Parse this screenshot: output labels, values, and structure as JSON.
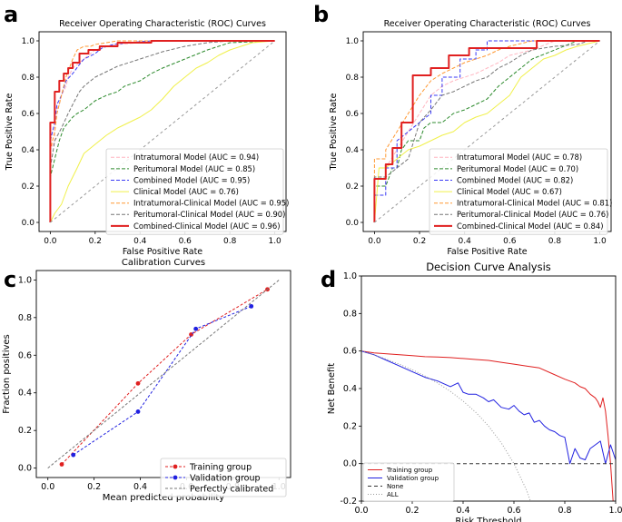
{
  "panels": {
    "a": {
      "letter": "a"
    },
    "b": {
      "letter": "b"
    },
    "c": {
      "letter": "c"
    },
    "d": {
      "letter": "d"
    }
  },
  "chart_data": [
    {
      "id": "roc-a",
      "type": "line",
      "title": "Receiver Operating Characteristic (ROC) Curves",
      "xlabel": "False Positive Rate",
      "ylabel": "True Positive Rate",
      "xlim": [
        -0.05,
        1.05
      ],
      "ylim": [
        -0.05,
        1.05
      ],
      "xticks": [
        "0.0",
        "0.2",
        "0.4",
        "0.6",
        "0.8",
        "1.0"
      ],
      "yticks": [
        "0.0",
        "0.2",
        "0.4",
        "0.6",
        "0.8",
        "1.0"
      ],
      "legend_position": "lower-right",
      "series": [
        {
          "name": "Intratumoral Model (AUC = 0.94)",
          "color": "#ffb6c1",
          "dash": "4,2",
          "width": 1,
          "x": [
            0,
            0,
            0.02,
            0.02,
            0.04,
            0.05,
            0.07,
            0.08,
            0.1,
            0.13,
            0.17,
            0.2,
            0.25,
            0.3,
            0.4,
            0.5,
            0.6,
            1
          ],
          "y": [
            0,
            0.4,
            0.45,
            0.6,
            0.65,
            0.7,
            0.75,
            0.8,
            0.85,
            0.88,
            0.92,
            0.95,
            0.97,
            0.98,
            0.99,
            1,
            1,
            1
          ]
        },
        {
          "name": "Peritumoral Model (AUC = 0.85)",
          "color": "#2e8b2e",
          "dash": "4,2",
          "width": 1,
          "x": [
            0,
            0,
            0.02,
            0.04,
            0.06,
            0.08,
            0.1,
            0.12,
            0.15,
            0.2,
            0.25,
            0.3,
            0.33,
            0.4,
            0.45,
            0.5,
            0.6,
            0.7,
            0.8,
            1
          ],
          "y": [
            0,
            0.25,
            0.35,
            0.45,
            0.52,
            0.55,
            0.58,
            0.6,
            0.62,
            0.67,
            0.7,
            0.72,
            0.75,
            0.78,
            0.82,
            0.85,
            0.9,
            0.95,
            0.99,
            1
          ]
        },
        {
          "name": "Combined Model (AUC = 0.95)",
          "color": "#3a3af5",
          "dash": "4,2",
          "width": 1,
          "x": [
            0,
            0,
            0.02,
            0.03,
            0.05,
            0.07,
            0.1,
            0.13,
            0.15,
            0.2,
            0.23,
            0.28,
            0.35,
            0.45,
            0.6,
            1
          ],
          "y": [
            0,
            0.45,
            0.55,
            0.65,
            0.7,
            0.78,
            0.82,
            0.87,
            0.9,
            0.93,
            0.96,
            0.98,
            0.99,
            1,
            1,
            1
          ]
        },
        {
          "name": "Clinical Model (AUC = 0.76)",
          "color": "#f0f04a",
          "dash": "",
          "width": 1,
          "x": [
            0,
            0.02,
            0.05,
            0.08,
            0.12,
            0.15,
            0.2,
            0.25,
            0.3,
            0.35,
            0.4,
            0.45,
            0.5,
            0.55,
            0.6,
            0.65,
            0.7,
            0.75,
            0.8,
            0.85,
            0.9,
            1
          ],
          "y": [
            0,
            0.05,
            0.1,
            0.2,
            0.3,
            0.38,
            0.43,
            0.48,
            0.52,
            0.55,
            0.58,
            0.62,
            0.68,
            0.75,
            0.8,
            0.85,
            0.88,
            0.92,
            0.95,
            0.97,
            0.99,
            1
          ]
        },
        {
          "name": "Intratumoral-Clinical Model (AUC = 0.95)",
          "color": "#ff9933",
          "dash": "4,2",
          "width": 1,
          "x": [
            0,
            0,
            0.02,
            0.03,
            0.05,
            0.07,
            0.1,
            0.12,
            0.15,
            0.18,
            0.2,
            0.25,
            0.3,
            0.4,
            0.55,
            1
          ],
          "y": [
            0,
            0.4,
            0.5,
            0.6,
            0.7,
            0.8,
            0.9,
            0.95,
            0.97,
            0.97,
            0.98,
            0.99,
            1,
            1,
            1,
            1
          ]
        },
        {
          "name": "Peritumoral-Clinical Model (AUC = 0.90)",
          "color": "#777777",
          "dash": "4,2",
          "width": 1,
          "x": [
            0,
            0,
            0.02,
            0.05,
            0.08,
            0.1,
            0.13,
            0.15,
            0.2,
            0.25,
            0.3,
            0.35,
            0.4,
            0.5,
            0.6,
            0.7,
            0.8,
            1
          ],
          "y": [
            0,
            0.3,
            0.45,
            0.52,
            0.6,
            0.65,
            0.72,
            0.75,
            0.8,
            0.83,
            0.86,
            0.88,
            0.9,
            0.94,
            0.97,
            0.99,
            1,
            1
          ]
        },
        {
          "name": "Combined-Clinical Model (AUC = 0.96)",
          "color": "#e02020",
          "dash": "",
          "width": 2,
          "x": [
            0,
            0,
            0.02,
            0.02,
            0.04,
            0.04,
            0.06,
            0.06,
            0.08,
            0.08,
            0.1,
            0.1,
            0.13,
            0.13,
            0.17,
            0.17,
            0.22,
            0.22,
            0.3,
            0.3,
            0.45,
            0.45,
            1
          ],
          "y": [
            0,
            0.55,
            0.55,
            0.72,
            0.72,
            0.78,
            0.78,
            0.82,
            0.82,
            0.85,
            0.85,
            0.88,
            0.88,
            0.93,
            0.93,
            0.95,
            0.95,
            0.97,
            0.97,
            0.99,
            0.99,
            1,
            1
          ]
        },
        {
          "name": "",
          "color": "#999999",
          "dash": "3,3",
          "width": 1,
          "x": [
            0,
            1
          ],
          "y": [
            0,
            1
          ]
        }
      ]
    },
    {
      "id": "roc-b",
      "type": "line",
      "title": "Receiver Operating Characteristic (ROC) Curves",
      "xlabel": "False Positive Rate",
      "ylabel": "True Positive Rate",
      "xlim": [
        -0.05,
        1.05
      ],
      "ylim": [
        -0.05,
        1.05
      ],
      "xticks": [
        "0.0",
        "0.2",
        "0.4",
        "0.6",
        "0.8",
        "1.0"
      ],
      "yticks": [
        "0.0",
        "0.2",
        "0.4",
        "0.6",
        "0.8",
        "1.0"
      ],
      "legend_position": "lower-right",
      "series": [
        {
          "name": "Intratumoral Model (AUC = 0.78)",
          "color": "#ffb6c1",
          "dash": "4,2",
          "width": 1,
          "x": [
            0,
            0,
            0.05,
            0.05,
            0.1,
            0.15,
            0.2,
            0.25,
            0.3,
            0.35,
            0.4,
            0.45,
            0.5,
            0.55,
            0.6,
            0.7,
            0.8,
            1
          ],
          "y": [
            0,
            0.2,
            0.2,
            0.3,
            0.4,
            0.5,
            0.6,
            0.7,
            0.75,
            0.78,
            0.8,
            0.82,
            0.85,
            0.88,
            0.92,
            0.95,
            1,
            1
          ]
        },
        {
          "name": "Peritumoral Model (AUC = 0.70)",
          "color": "#2e8b2e",
          "dash": "4,2",
          "width": 1,
          "x": [
            0,
            0,
            0.05,
            0.08,
            0.1,
            0.12,
            0.15,
            0.2,
            0.22,
            0.25,
            0.3,
            0.35,
            0.4,
            0.45,
            0.5,
            0.55,
            0.6,
            0.65,
            0.7,
            0.8,
            0.9,
            1
          ],
          "y": [
            0,
            0.2,
            0.2,
            0.3,
            0.3,
            0.4,
            0.45,
            0.45,
            0.52,
            0.55,
            0.55,
            0.6,
            0.62,
            0.65,
            0.68,
            0.75,
            0.8,
            0.85,
            0.9,
            0.95,
            1,
            1
          ]
        },
        {
          "name": "Combined Model (AUC = 0.82)",
          "color": "#3a3af5",
          "dash": "4,2",
          "width": 1,
          "x": [
            0,
            0,
            0.05,
            0.05,
            0.1,
            0.1,
            0.15,
            0.2,
            0.25,
            0.25,
            0.3,
            0.3,
            0.38,
            0.38,
            0.45,
            0.45,
            0.5,
            0.5,
            0.55,
            1
          ],
          "y": [
            0,
            0.15,
            0.15,
            0.3,
            0.3,
            0.45,
            0.5,
            0.55,
            0.6,
            0.7,
            0.7,
            0.8,
            0.8,
            0.9,
            0.9,
            0.95,
            0.95,
            1,
            1,
            1
          ]
        },
        {
          "name": "Clinical Model (AUC = 0.67)",
          "color": "#f0f04a",
          "dash": "",
          "width": 1,
          "x": [
            0,
            0.02,
            0.05,
            0.1,
            0.15,
            0.2,
            0.25,
            0.3,
            0.35,
            0.4,
            0.45,
            0.5,
            0.55,
            0.6,
            0.65,
            0.7,
            0.75,
            0.8,
            0.85,
            0.9,
            1
          ],
          "y": [
            0,
            0.3,
            0.3,
            0.35,
            0.4,
            0.42,
            0.45,
            0.48,
            0.5,
            0.55,
            0.58,
            0.6,
            0.65,
            0.7,
            0.8,
            0.85,
            0.9,
            0.92,
            0.95,
            0.97,
            1
          ]
        },
        {
          "name": "Intratumoral-Clinical Model (AUC = 0.81)",
          "color": "#ff9933",
          "dash": "4,2",
          "width": 1,
          "x": [
            0,
            0,
            0.05,
            0.05,
            0.1,
            0.15,
            0.2,
            0.25,
            0.3,
            0.35,
            0.4,
            0.45,
            0.5,
            0.55,
            0.6,
            0.7,
            1
          ],
          "y": [
            0,
            0.35,
            0.35,
            0.4,
            0.5,
            0.6,
            0.7,
            0.78,
            0.82,
            0.85,
            0.88,
            0.9,
            0.92,
            0.95,
            0.97,
            1,
            1
          ]
        },
        {
          "name": "Peritumoral-Clinical Model (AUC = 0.76)",
          "color": "#777777",
          "dash": "4,2",
          "width": 1,
          "x": [
            0,
            0,
            0.05,
            0.1,
            0.15,
            0.2,
            0.25,
            0.3,
            0.35,
            0.4,
            0.45,
            0.5,
            0.55,
            0.6,
            0.65,
            0.7,
            0.8,
            0.9,
            0.95,
            1
          ],
          "y": [
            0,
            0.25,
            0.25,
            0.3,
            0.35,
            0.55,
            0.62,
            0.7,
            0.72,
            0.75,
            0.78,
            0.8,
            0.85,
            0.88,
            0.92,
            0.95,
            0.97,
            0.98,
            1,
            1
          ]
        },
        {
          "name": "Combined-Clinical Model (AUC = 0.84)",
          "color": "#e02020",
          "dash": "",
          "width": 2,
          "x": [
            0,
            0,
            0.05,
            0.05,
            0.08,
            0.08,
            0.12,
            0.12,
            0.17,
            0.17,
            0.25,
            0.25,
            0.33,
            0.33,
            0.42,
            0.42,
            0.72,
            0.72,
            1
          ],
          "y": [
            0,
            0.24,
            0.24,
            0.32,
            0.32,
            0.41,
            0.41,
            0.55,
            0.55,
            0.81,
            0.81,
            0.85,
            0.85,
            0.92,
            0.92,
            0.96,
            0.96,
            1,
            1
          ]
        },
        {
          "name": "",
          "color": "#999999",
          "dash": "3,3",
          "width": 1,
          "x": [
            0,
            1
          ],
          "y": [
            0,
            1
          ]
        }
      ]
    },
    {
      "id": "calibration-c",
      "type": "line",
      "title": "Calibration Curves",
      "xlabel": "Mean predicted probability",
      "ylabel": "Fraction positives",
      "xlim": [
        -0.05,
        1.05
      ],
      "ylim": [
        -0.05,
        1.05
      ],
      "xticks": [
        "0.0",
        "0.2",
        "0.4",
        "0.6",
        "0.8",
        "1.0"
      ],
      "yticks": [
        "0.0",
        "0.2",
        "0.4",
        "0.6",
        "0.8",
        "1.0"
      ],
      "legend_position": "lower-right",
      "series": [
        {
          "name": "Training group",
          "color": "#e02020",
          "dash": "3,2",
          "width": 1,
          "marker": "circle",
          "x": [
            0.06,
            0.39,
            0.62,
            0.95
          ],
          "y": [
            0.02,
            0.45,
            0.71,
            0.95
          ]
        },
        {
          "name": "Validation group",
          "color": "#2020e0",
          "dash": "3,2",
          "width": 1,
          "marker": "circle",
          "x": [
            0.11,
            0.39,
            0.64,
            0.88
          ],
          "y": [
            0.07,
            0.3,
            0.74,
            0.86
          ]
        },
        {
          "name": "Perfectly calibrated",
          "color": "#777777",
          "dash": "3,2",
          "width": 1,
          "x": [
            0,
            1
          ],
          "y": [
            0,
            1
          ]
        }
      ]
    },
    {
      "id": "dca-d",
      "type": "line",
      "title": "Decision Curve Analysis",
      "xlabel": "Risk Threshold",
      "ylabel": "Net Benefit",
      "xlim": [
        0,
        1
      ],
      "ylim": [
        -0.2,
        1.0
      ],
      "xticks": [
        "0.0",
        "0.2",
        "0.4",
        "0.6",
        "0.8",
        "1.0"
      ],
      "yticks": [
        "-0.2",
        "0.0",
        "0.2",
        "0.4",
        "0.6",
        "0.8",
        "1.0"
      ],
      "legend_position": "lower-left",
      "series": [
        {
          "name": "Training group",
          "color": "#e02020",
          "dash": "",
          "width": 1,
          "x": [
            0,
            0.05,
            0.1,
            0.15,
            0.2,
            0.25,
            0.3,
            0.35,
            0.4,
            0.45,
            0.5,
            0.55,
            0.6,
            0.65,
            0.7,
            0.75,
            0.8,
            0.84,
            0.86,
            0.88,
            0.9,
            0.92,
            0.93,
            0.94,
            0.95,
            0.96,
            0.97,
            0.98,
            0.99
          ],
          "y": [
            0.6,
            0.59,
            0.585,
            0.58,
            0.575,
            0.57,
            0.568,
            0.565,
            0.56,
            0.555,
            0.55,
            0.54,
            0.53,
            0.52,
            0.51,
            0.48,
            0.45,
            0.43,
            0.41,
            0.4,
            0.37,
            0.35,
            0.33,
            0.3,
            0.35,
            0.28,
            0.15,
            0.0,
            -0.2
          ]
        },
        {
          "name": "Validation group",
          "color": "#2020e0",
          "dash": "",
          "width": 1,
          "x": [
            0,
            0.05,
            0.1,
            0.15,
            0.2,
            0.25,
            0.3,
            0.35,
            0.38,
            0.4,
            0.42,
            0.45,
            0.48,
            0.5,
            0.52,
            0.55,
            0.58,
            0.6,
            0.62,
            0.64,
            0.66,
            0.68,
            0.7,
            0.72,
            0.74,
            0.76,
            0.78,
            0.8,
            0.82,
            0.84,
            0.86,
            0.88,
            0.9,
            0.92,
            0.94,
            0.96,
            0.98,
            1.0
          ],
          "y": [
            0.6,
            0.58,
            0.55,
            0.52,
            0.49,
            0.46,
            0.44,
            0.41,
            0.43,
            0.38,
            0.37,
            0.37,
            0.35,
            0.33,
            0.34,
            0.3,
            0.29,
            0.31,
            0.28,
            0.26,
            0.27,
            0.22,
            0.23,
            0.2,
            0.18,
            0.17,
            0.15,
            0.14,
            0.0,
            0.08,
            0.03,
            0.02,
            0.08,
            0.1,
            0.12,
            0.0,
            0.1,
            0.02
          ]
        },
        {
          "name": "None",
          "color": "#333333",
          "dash": "4,3",
          "width": 1,
          "x": [
            0,
            1
          ],
          "y": [
            0,
            0
          ]
        },
        {
          "name": "ALL",
          "color": "#999999",
          "dash": "1,2",
          "width": 1,
          "x": [
            0,
            0.05,
            0.1,
            0.15,
            0.2,
            0.25,
            0.3,
            0.35,
            0.4,
            0.45,
            0.5,
            0.55,
            0.6,
            0.65,
            0.7
          ],
          "y": [
            0.6,
            0.579,
            0.556,
            0.529,
            0.5,
            0.467,
            0.429,
            0.385,
            0.333,
            0.273,
            0.2,
            0.111,
            0.0,
            -0.143,
            -0.333
          ]
        }
      ]
    }
  ]
}
